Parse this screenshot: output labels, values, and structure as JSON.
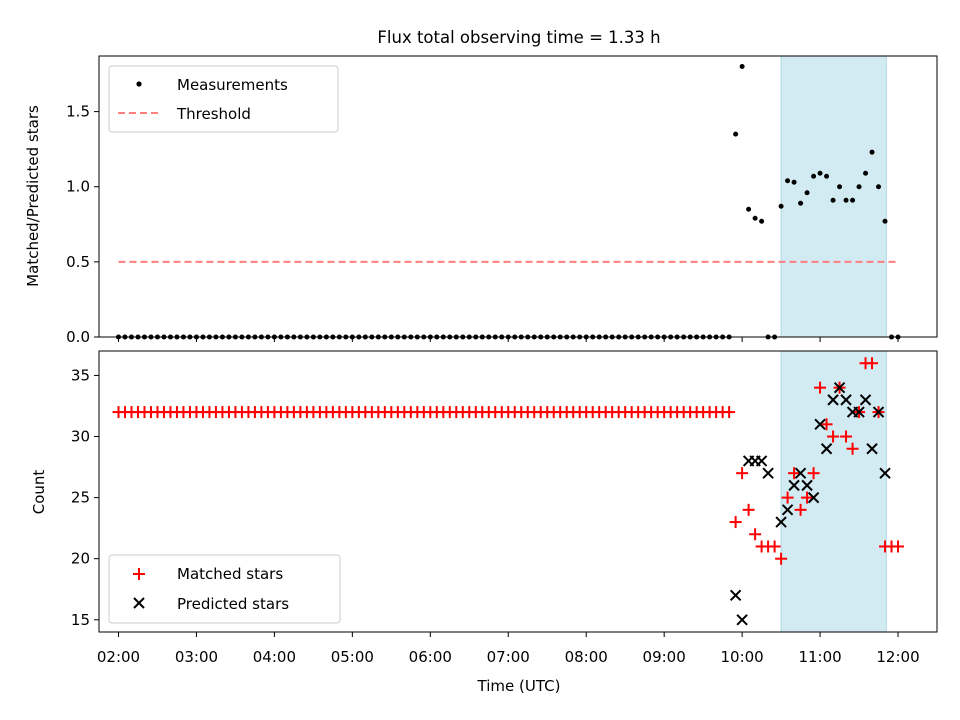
{
  "figure_title": "Flux total observing time = 1.33 h",
  "chart_data": [
    {
      "type": "scatter",
      "title": "",
      "xlabel": "",
      "ylabel": "Matched/Predicted stars",
      "xlim": [
        "01:45",
        "12:30"
      ],
      "ylim": [
        0,
        1.87
      ],
      "yticks": [
        "0.0",
        "0.5",
        "1.0",
        "1.5"
      ],
      "grid": false,
      "legend_position": "top-left",
      "shaded_interval": {
        "start": "10:30",
        "end": "11:51",
        "color": "#add8e6"
      },
      "series": [
        {
          "name": "Measurements",
          "marker": "dot",
          "color": "#000000",
          "x": [
            "02:00",
            "02:05",
            "02:10",
            "02:15",
            "02:20",
            "02:25",
            "02:30",
            "02:35",
            "02:40",
            "02:45",
            "02:50",
            "02:55",
            "03:00",
            "03:05",
            "03:10",
            "03:15",
            "03:20",
            "03:25",
            "03:30",
            "03:35",
            "03:40",
            "03:45",
            "03:50",
            "03:55",
            "04:00",
            "04:05",
            "04:10",
            "04:15",
            "04:20",
            "04:25",
            "04:30",
            "04:35",
            "04:40",
            "04:45",
            "04:50",
            "04:55",
            "05:00",
            "05:05",
            "05:10",
            "05:15",
            "05:20",
            "05:25",
            "05:30",
            "05:35",
            "05:40",
            "05:45",
            "05:50",
            "05:55",
            "06:00",
            "06:05",
            "06:10",
            "06:15",
            "06:20",
            "06:25",
            "06:30",
            "06:35",
            "06:40",
            "06:45",
            "06:50",
            "06:55",
            "07:00",
            "07:05",
            "07:10",
            "07:15",
            "07:20",
            "07:25",
            "07:30",
            "07:35",
            "07:40",
            "07:45",
            "07:50",
            "07:55",
            "08:00",
            "08:05",
            "08:10",
            "08:15",
            "08:20",
            "08:25",
            "08:30",
            "08:35",
            "08:40",
            "08:45",
            "08:50",
            "08:55",
            "09:00",
            "09:05",
            "09:10",
            "09:15",
            "09:20",
            "09:25",
            "09:30",
            "09:35",
            "09:40",
            "09:45",
            "09:50",
            "09:55",
            "10:00",
            "10:05",
            "10:10",
            "10:15",
            "10:20",
            "10:25",
            "10:30",
            "10:35",
            "10:40",
            "10:45",
            "10:50",
            "10:55",
            "11:00",
            "11:05",
            "11:10",
            "11:15",
            "11:20",
            "11:25",
            "11:30",
            "11:35",
            "11:40",
            "11:45",
            "11:50",
            "11:55",
            "12:00"
          ],
          "y": [
            0,
            0,
            0,
            0,
            0,
            0,
            0,
            0,
            0,
            0,
            0,
            0,
            0,
            0,
            0,
            0,
            0,
            0,
            0,
            0,
            0,
            0,
            0,
            0,
            0,
            0,
            0,
            0,
            0,
            0,
            0,
            0,
            0,
            0,
            0,
            0,
            0,
            0,
            0,
            0,
            0,
            0,
            0,
            0,
            0,
            0,
            0,
            0,
            0,
            0,
            0,
            0,
            0,
            0,
            0,
            0,
            0,
            0,
            0,
            0,
            0,
            0,
            0,
            0,
            0,
            0,
            0,
            0,
            0,
            0,
            0,
            0,
            0,
            0,
            0,
            0,
            0,
            0,
            0,
            0,
            0,
            0,
            0,
            0,
            0,
            0,
            0,
            0,
            0,
            0,
            0,
            0,
            0,
            0,
            0,
            1.35,
            1.8,
            0.85,
            0.79,
            0.77,
            0,
            0,
            0.87,
            1.04,
            1.03,
            0.89,
            0.96,
            1.07,
            1.09,
            1.07,
            0.91,
            1.0,
            0.91,
            0.91,
            1.0,
            1.09,
            1.23,
            1.0,
            0.77,
            0,
            0
          ]
        },
        {
          "name": "Threshold",
          "marker": "dashed-line",
          "color": "#ff7f7f",
          "x": [
            "02:00",
            "12:00"
          ],
          "y": [
            0.5,
            0.5
          ]
        }
      ]
    },
    {
      "type": "scatter",
      "title": "",
      "xlabel": "Time (UTC)",
      "ylabel": "Count",
      "xlim": [
        "01:45",
        "12:30"
      ],
      "ylim": [
        14,
        37
      ],
      "yticks": [
        "15",
        "20",
        "25",
        "30",
        "35"
      ],
      "xticks": [
        "02:00",
        "03:00",
        "04:00",
        "05:00",
        "06:00",
        "07:00",
        "08:00",
        "09:00",
        "10:00",
        "11:00",
        "12:00"
      ],
      "grid": false,
      "legend_position": "bottom-left",
      "shaded_interval": {
        "start": "10:30",
        "end": "11:51",
        "color": "#add8e6"
      },
      "series": [
        {
          "name": "Matched stars",
          "marker": "plus",
          "color": "#ff0000",
          "x": [
            "02:00",
            "02:05",
            "02:10",
            "02:15",
            "02:20",
            "02:25",
            "02:30",
            "02:35",
            "02:40",
            "02:45",
            "02:50",
            "02:55",
            "03:00",
            "03:05",
            "03:10",
            "03:15",
            "03:20",
            "03:25",
            "03:30",
            "03:35",
            "03:40",
            "03:45",
            "03:50",
            "03:55",
            "04:00",
            "04:05",
            "04:10",
            "04:15",
            "04:20",
            "04:25",
            "04:30",
            "04:35",
            "04:40",
            "04:45",
            "04:50",
            "04:55",
            "05:00",
            "05:05",
            "05:10",
            "05:15",
            "05:20",
            "05:25",
            "05:30",
            "05:35",
            "05:40",
            "05:45",
            "05:50",
            "05:55",
            "06:00",
            "06:05",
            "06:10",
            "06:15",
            "06:20",
            "06:25",
            "06:30",
            "06:35",
            "06:40",
            "06:45",
            "06:50",
            "06:55",
            "07:00",
            "07:05",
            "07:10",
            "07:15",
            "07:20",
            "07:25",
            "07:30",
            "07:35",
            "07:40",
            "07:45",
            "07:50",
            "07:55",
            "08:00",
            "08:05",
            "08:10",
            "08:15",
            "08:20",
            "08:25",
            "08:30",
            "08:35",
            "08:40",
            "08:45",
            "08:50",
            "08:55",
            "09:00",
            "09:05",
            "09:10",
            "09:15",
            "09:20",
            "09:25",
            "09:30",
            "09:35",
            "09:40",
            "09:45",
            "09:50",
            "09:55",
            "10:00",
            "10:05",
            "10:10",
            "10:15",
            "10:20",
            "10:25",
            "10:30",
            "10:35",
            "10:40",
            "10:45",
            "10:50",
            "10:55",
            "11:00",
            "11:05",
            "11:10",
            "11:15",
            "11:20",
            "11:25",
            "11:30",
            "11:35",
            "11:40",
            "11:45",
            "11:50",
            "11:55",
            "12:00"
          ],
          "y": [
            32,
            32,
            32,
            32,
            32,
            32,
            32,
            32,
            32,
            32,
            32,
            32,
            32,
            32,
            32,
            32,
            32,
            32,
            32,
            32,
            32,
            32,
            32,
            32,
            32,
            32,
            32,
            32,
            32,
            32,
            32,
            32,
            32,
            32,
            32,
            32,
            32,
            32,
            32,
            32,
            32,
            32,
            32,
            32,
            32,
            32,
            32,
            32,
            32,
            32,
            32,
            32,
            32,
            32,
            32,
            32,
            32,
            32,
            32,
            32,
            32,
            32,
            32,
            32,
            32,
            32,
            32,
            32,
            32,
            32,
            32,
            32,
            32,
            32,
            32,
            32,
            32,
            32,
            32,
            32,
            32,
            32,
            32,
            32,
            32,
            32,
            32,
            32,
            32,
            32,
            32,
            32,
            32,
            32,
            32,
            23,
            27,
            24,
            22,
            21,
            21,
            21,
            20,
            25,
            27,
            24,
            25,
            27,
            34,
            31,
            30,
            34,
            30,
            29,
            32,
            36,
            36,
            32,
            21,
            21,
            21
          ]
        },
        {
          "name": "Predicted stars",
          "marker": "x",
          "color": "#000000",
          "x": [
            "09:55",
            "10:00",
            "10:05",
            "10:10",
            "10:15",
            "10:20",
            "10:30",
            "10:35",
            "10:40",
            "10:45",
            "10:50",
            "10:55",
            "11:00",
            "11:05",
            "11:10",
            "11:15",
            "11:20",
            "11:25",
            "11:30",
            "11:35",
            "11:40",
            "11:45",
            "11:50"
          ],
          "y": [
            17,
            15,
            28,
            28,
            28,
            27,
            23,
            24,
            26,
            27,
            26,
            25,
            31,
            29,
            33,
            34,
            33,
            32,
            32,
            33,
            29,
            32,
            27
          ]
        }
      ]
    }
  ]
}
